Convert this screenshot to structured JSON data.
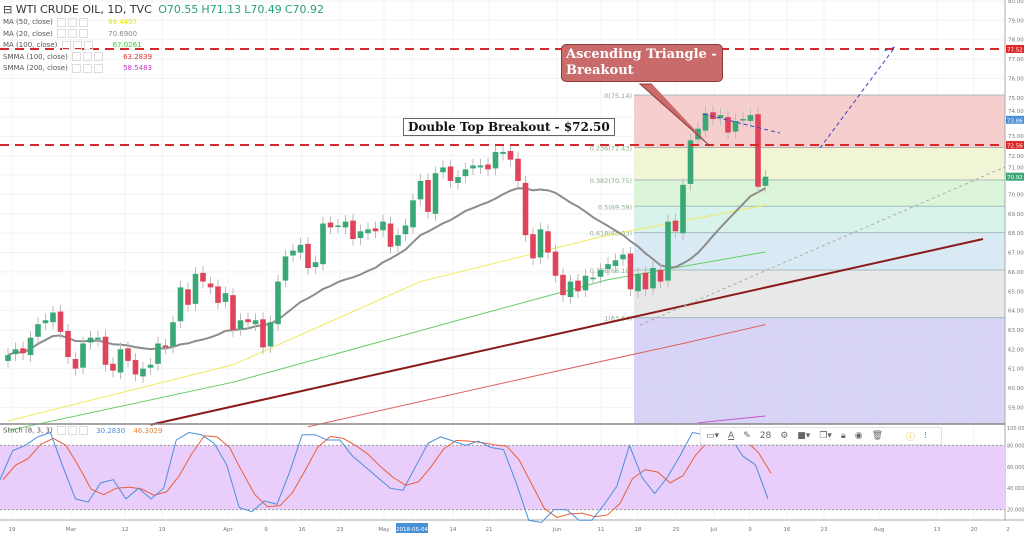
{
  "header": {
    "symbol": "WTI CRUDE OIL, 1D, TVC",
    "open": "O70.55",
    "high": "H71.13",
    "low": "L70.49",
    "close": "C70.92"
  },
  "indicators": [
    {
      "label": "MA (50, close)",
      "value": "69.4497",
      "color": "#e6e600"
    },
    {
      "label": "MA (20, close)",
      "value": "70.6900",
      "color": "#888888"
    },
    {
      "label": "MA (100, close)",
      "value": "67.0261",
      "color": "#33cc33"
    },
    {
      "label": "SMMA (100, close)",
      "value": "63.2839",
      "color": "#e03030"
    },
    {
      "label": "SMMA (200, close)",
      "value": "58.5483",
      "color": "#cc33cc"
    }
  ],
  "stoch_legend": {
    "label": "Stoch (8, 3, 3)",
    "k": "30.2830",
    "d": "46.3029"
  },
  "annotations": {
    "double_top": "Double Top Breakout - $72.50",
    "triangle": "Ascending Triangle - Breakout"
  },
  "toolbar": {
    "font_size": "28",
    "items": [
      "rectangle-icon",
      "text-color-icon",
      "pen-icon",
      "font-size",
      "gear-icon",
      "fill-icon",
      "copy-icon",
      "lock-icon",
      "eye-icon",
      "trash-icon",
      "info-icon"
    ]
  },
  "chart_data": {
    "type": "candlestick",
    "ylim": [
      58,
      80
    ],
    "y_ticks": [
      "80.00",
      "79.00",
      "78.00",
      "77.00",
      "76.00",
      "75.00",
      "74.00",
      "73.00",
      "72.00",
      "71.00",
      "70.00",
      "69.00",
      "68.00",
      "67.00",
      "66.00",
      "65.00",
      "64.00",
      "63.00",
      "62.00",
      "61.00",
      "60.00",
      "59.00"
    ],
    "price_labels": [
      {
        "value": "77.52",
        "color": "#e02828"
      },
      {
        "value": "73.86",
        "color": "#4a90d9"
      },
      {
        "value": "72.56",
        "color": "#e02828"
      },
      {
        "value": "70.92",
        "color": "#3aa876"
      }
    ],
    "x_ticks": [
      "19",
      "Mar",
      "12",
      "19",
      "Apr",
      "9",
      "16",
      "23",
      "May",
      "2018-05-04",
      "14",
      "21",
      "Jun",
      "11",
      "18",
      "25",
      "Jul",
      "9",
      "16",
      "23",
      "Aug",
      "13",
      "20",
      "2"
    ],
    "closes": [
      61.7,
      62.0,
      61.8,
      62.6,
      63.3,
      63.5,
      63.9,
      62.9,
      61.6,
      61.0,
      62.3,
      62.6,
      62.6,
      61.2,
      60.9,
      62.0,
      61.4,
      60.7,
      61.0,
      61.2,
      62.3,
      62.1,
      63.4,
      65.2,
      64.3,
      65.9,
      65.5,
      65.2,
      64.4,
      64.9,
      63.0,
      63.5,
      63.4,
      63.5,
      62.1,
      63.4,
      65.5,
      66.8,
      67.1,
      67.4,
      66.2,
      66.5,
      68.5,
      68.3,
      68.4,
      68.6,
      67.7,
      68.1,
      68.2,
      68.1,
      68.6,
      67.3,
      67.9,
      68.4,
      69.7,
      70.7,
      69.1,
      71.1,
      71.4,
      70.7,
      70.9,
      71.3,
      71.5,
      71.5,
      71.3,
      72.2,
      72.2,
      71.8,
      70.7,
      67.9,
      66.7,
      68.2,
      67.0,
      65.8,
      64.8,
      65.5,
      65.0,
      65.8,
      65.7,
      66.1,
      66.4,
      66.6,
      66.9,
      65.1,
      65.9,
      65.1,
      66.2,
      65.5,
      68.6,
      68.1,
      70.5,
      72.8,
      73.4,
      74.2,
      73.9,
      74.1,
      73.2,
      73.8,
      73.9,
      74.1,
      70.4,
      70.92
    ],
    "moving_averages": [
      {
        "name": "MA (50, close)",
        "color": "#f2e85c",
        "points": [
          [
            0,
            58.3
          ],
          [
            30,
            61.2
          ],
          [
            55,
            65.5
          ],
          [
            80,
            67.9
          ],
          [
            101,
            69.45
          ]
        ]
      },
      {
        "name": "MA (100, close)",
        "color": "#66cc66",
        "points": [
          [
            0,
            57.8
          ],
          [
            30,
            60.3
          ],
          [
            60,
            63.5
          ],
          [
            80,
            65.6
          ],
          [
            101,
            67.03
          ]
        ]
      },
      {
        "name": "SMMA (100, close)",
        "color": "#e06060",
        "points": [
          [
            40,
            58.0
          ],
          [
            70,
            60.6
          ],
          [
            90,
            62.3
          ],
          [
            101,
            63.28
          ]
        ]
      },
      {
        "name": "SMMA (200, close)",
        "color": "#cc55cc",
        "points": [
          [
            92,
            58.2
          ],
          [
            101,
            58.55
          ]
        ]
      }
    ],
    "horizontal_lines": [
      77.52,
      72.56
    ],
    "trendline": [
      [
        19,
        58.1
      ],
      [
        130,
        67.7
      ]
    ],
    "fibonacci": [
      {
        "level": "0(75.14)",
        "price": 75.14,
        "color": "#f4c6c6"
      },
      {
        "level": "0.236(72.43)",
        "price": 72.43,
        "color": "#eef3cf"
      },
      {
        "level": "0.382(70.75)",
        "price": 70.75,
        "color": "#d6f2d2"
      },
      {
        "level": "0.5(69.39)",
        "price": 69.39,
        "color": "#d1f1e8"
      },
      {
        "level": "0.618(68.03)",
        "price": 68.03,
        "color": "#d3e6f2"
      },
      {
        "level": "0.786(66.10)",
        "price": 66.1,
        "color": "#e4e4e4"
      },
      {
        "level": "1(63.64)",
        "price": 63.64,
        "color": "#d0ccf4"
      }
    ],
    "stoch": {
      "ylim": [
        0,
        100
      ],
      "bands": [
        20,
        80
      ],
      "y_ticks": [
        "100.000",
        "80.000",
        "60.000",
        "40.000",
        "20.000"
      ],
      "k": [
        48,
        75,
        80,
        88,
        92,
        60,
        30,
        27,
        45,
        48,
        30,
        40,
        30,
        40,
        85,
        92,
        90,
        82,
        62,
        22,
        18,
        28,
        25,
        55,
        90,
        90,
        85,
        85,
        70,
        60,
        50,
        40,
        38,
        60,
        82,
        88,
        84,
        80,
        84,
        78,
        76,
        45,
        10,
        8,
        20,
        20,
        10,
        10,
        25,
        42,
        80,
        50,
        35,
        50,
        70,
        92,
        90,
        95,
        88,
        70,
        62,
        30
      ]
    }
  }
}
